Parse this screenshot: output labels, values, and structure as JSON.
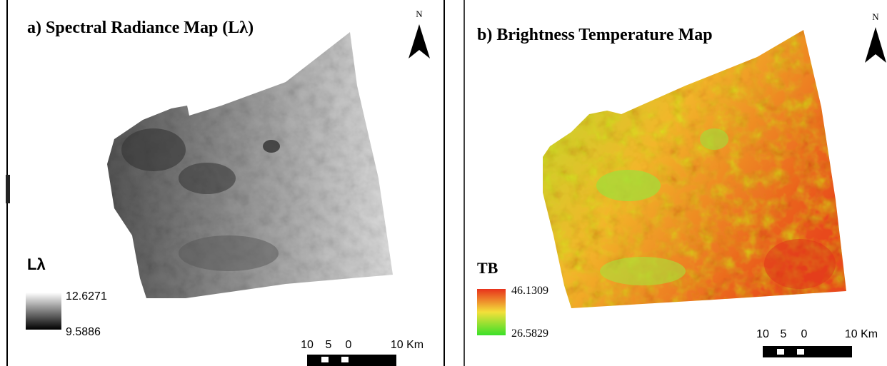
{
  "panels": [
    {
      "title": "a) Spectral Radiance Map (Lλ)",
      "north": "N",
      "legend": {
        "title": "Lλ",
        "max": "12.6271",
        "min": "9.5886"
      },
      "scale_bar": [
        "10",
        "5",
        "0",
        "10 Km"
      ]
    },
    {
      "title": "b) Brightness Temperature Map",
      "north": "N",
      "legend": {
        "title": "TB",
        "max": "46.1309",
        "min": "26.5829"
      },
      "scale_bar": [
        "10",
        "5",
        "0",
        "10 Km"
      ]
    }
  ]
}
